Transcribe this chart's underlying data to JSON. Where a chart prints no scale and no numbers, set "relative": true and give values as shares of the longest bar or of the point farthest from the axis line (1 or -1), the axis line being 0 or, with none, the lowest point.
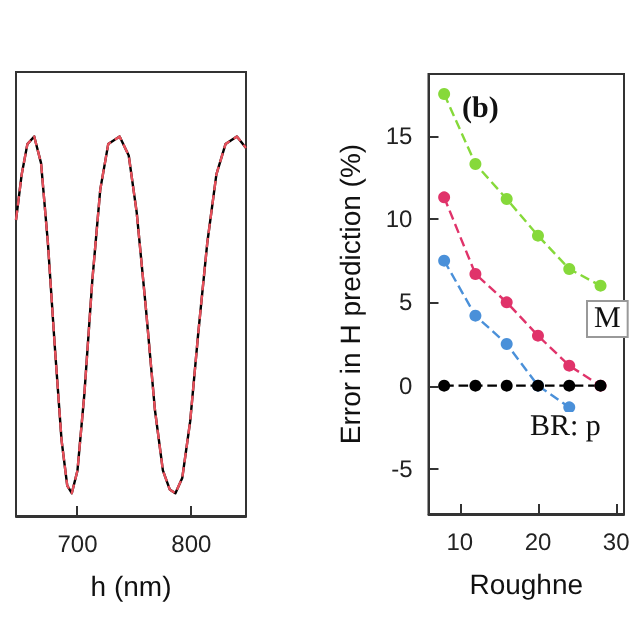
{
  "chart_data": [
    {
      "type": "line",
      "xlabel": "h (nm)",
      "x": [
        646,
        651,
        656,
        662,
        668,
        674,
        680,
        686,
        691,
        695,
        700,
        706,
        713,
        720,
        727,
        737,
        745,
        752,
        760,
        768,
        775,
        781,
        786,
        792,
        799,
        806,
        814,
        822,
        830,
        840,
        848
      ],
      "relative": true,
      "xlim": [
        646,
        848
      ],
      "xticks": [
        700,
        800
      ],
      "marker": "none",
      "series": [
        {
          "color": "#000000",
          "values": [
            0.78,
            0.9,
            0.98,
            1,
            0.93,
            0.72,
            0.45,
            0.2,
            0.08,
            0.06,
            0.12,
            0.32,
            0.62,
            0.86,
            0.98,
            1,
            0.95,
            0.8,
            0.55,
            0.28,
            0.12,
            0.07,
            0.06,
            0.1,
            0.25,
            0.48,
            0.72,
            0.9,
            0.98,
            1,
            0.97
          ]
        },
        {
          "color": "#e8505b",
          "line_style": "dashed",
          "values": [
            0.78,
            0.9,
            0.98,
            1,
            0.93,
            0.72,
            0.45,
            0.2,
            0.08,
            0.06,
            0.12,
            0.32,
            0.62,
            0.86,
            0.98,
            1,
            0.95,
            0.8,
            0.55,
            0.28,
            0.12,
            0.07,
            0.06,
            0.1,
            0.25,
            0.48,
            0.72,
            0.9,
            0.98,
            1,
            0.97
          ]
        }
      ]
    },
    {
      "type": "line",
      "xlabel": "Roughne",
      "ylabel": "Error in H prediction (%)",
      "annotations": [
        "(b)",
        "BR: p",
        "M"
      ],
      "x": [
        8,
        12,
        16,
        20,
        24,
        28
      ],
      "xlim": [
        6,
        31
      ],
      "xticks": [
        10,
        20,
        30
      ],
      "ylim": [
        -7.7,
        18.7
      ],
      "yticks": [
        -5,
        0,
        5,
        10,
        15
      ],
      "marker": "circle",
      "line_style": "dashed",
      "series": [
        {
          "color": "#86d93a",
          "values": [
            17.5,
            13.3,
            11.2,
            9,
            7,
            6
          ]
        },
        {
          "color": "#e0336a",
          "values": [
            11.3,
            6.7,
            5,
            3,
            1.2,
            0
          ]
        },
        {
          "color": "#4a90d9",
          "values": [
            7.5,
            4.2,
            2.5,
            0,
            -1.3,
            null
          ]
        },
        {
          "color": "#000000",
          "values": [
            0,
            0,
            0,
            0,
            0,
            0
          ]
        }
      ]
    }
  ]
}
